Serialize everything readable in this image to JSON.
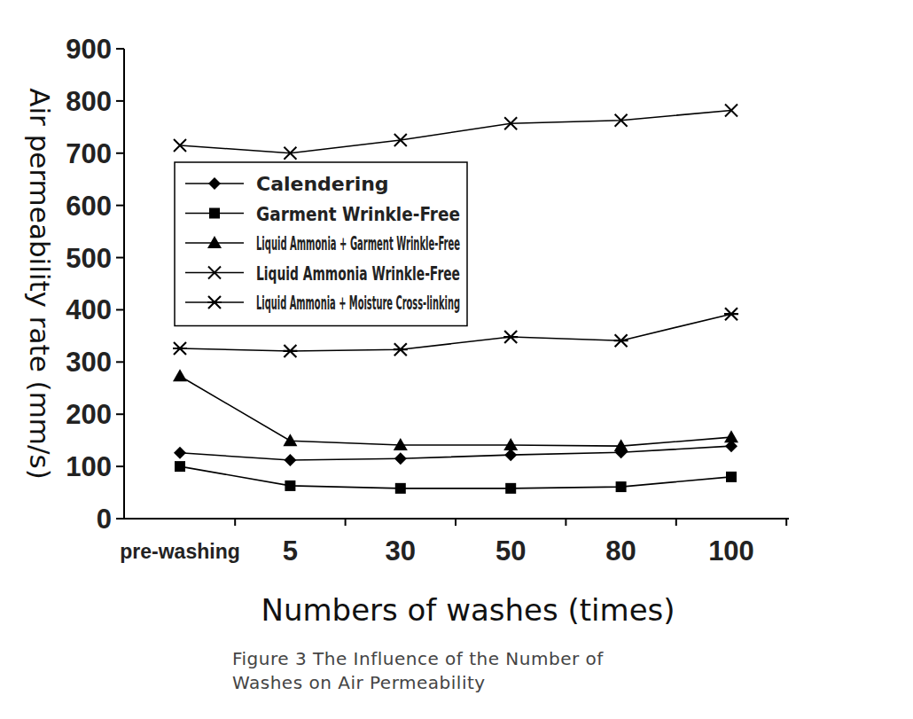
{
  "chart_data": {
    "type": "line",
    "title": "Figure 3 The Influence of the Number of Washes on Air Permeability",
    "x_label": "Numbers of washes (times)",
    "y_label": "Air permeability rate (mm/s)",
    "categories": [
      "pre-washing",
      "5",
      "30",
      "50",
      "80",
      "100"
    ],
    "ylim": [
      0,
      900
    ],
    "yticks": [
      0,
      100,
      200,
      300,
      400,
      500,
      600,
      700,
      800,
      900
    ],
    "grid": false,
    "legend": "upper left",
    "series": [
      {
        "name": "Calendering",
        "color": "#000000",
        "marker": "diamond",
        "values": [
          126,
          112,
          115,
          122,
          127,
          139
        ]
      },
      {
        "name": "Garment Wrinkle-Free",
        "color": "#000000",
        "marker": "square",
        "values": [
          100,
          63,
          58,
          58,
          61,
          80
        ]
      },
      {
        "name": "Liquid Ammonia + Garment Wrinkle-Free",
        "color": "#000000",
        "marker": "triangle",
        "values": [
          273,
          149,
          141,
          141,
          139,
          156
        ]
      },
      {
        "name": "Liquid Ammonia Wrinkle-Free",
        "color": "#000000",
        "marker": "x",
        "values": [
          715,
          700,
          725,
          757,
          763,
          782
        ]
      },
      {
        "name": "Liquid Ammonia + Moisture Cross-linking",
        "color": "#000000",
        "marker": "asterisk",
        "values": [
          326,
          321,
          324,
          348,
          341,
          392
        ]
      }
    ]
  }
}
